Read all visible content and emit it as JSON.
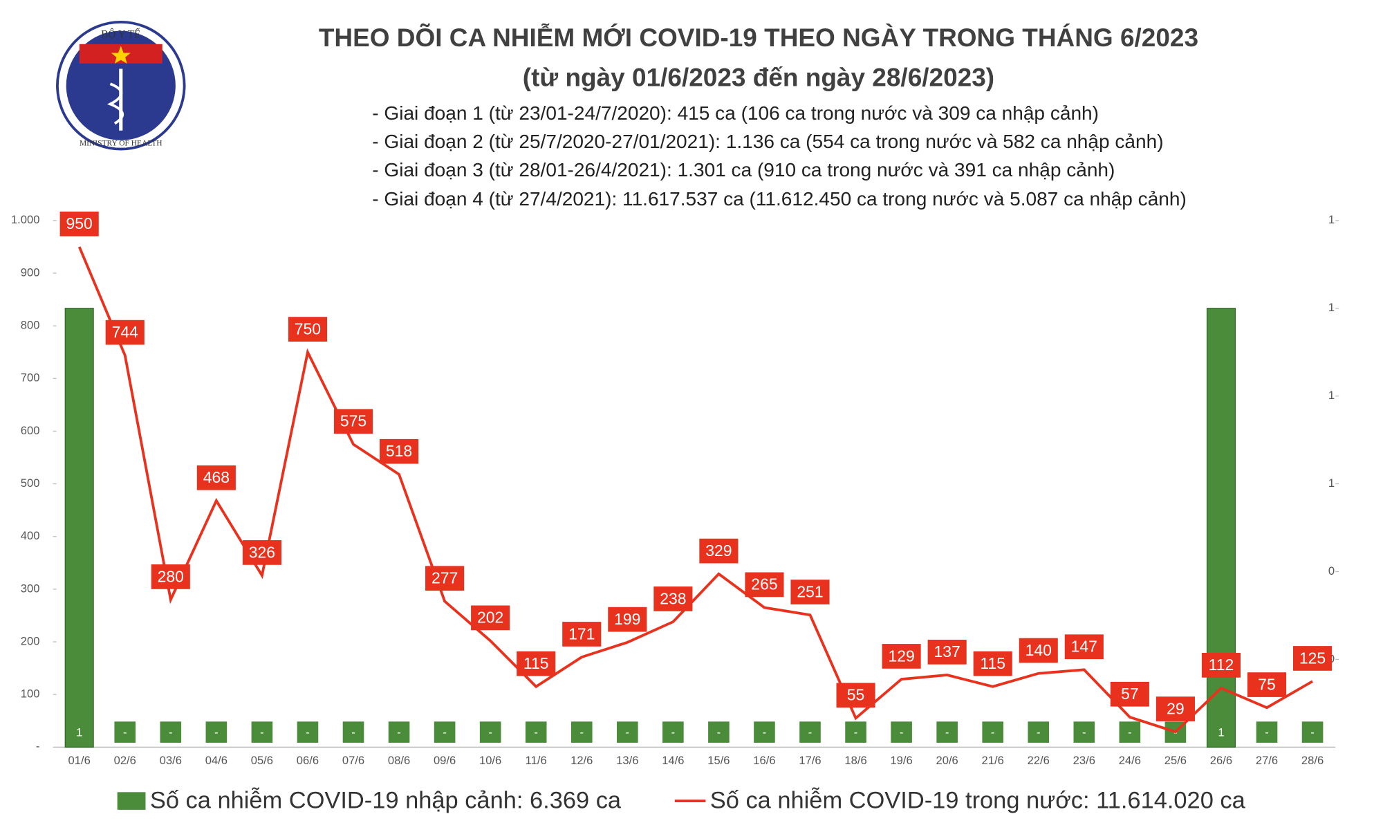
{
  "logo": {
    "top_text": "BỘ Y TẾ",
    "bottom_text": "MINISTRY OF HEALTH"
  },
  "chart_data": {
    "type": "bar-line",
    "title": "THEO DÕI CA NHIỄM MỚI COVID-19 THEO NGÀY TRONG THÁNG 6/2023",
    "subtitle": "(từ ngày 01/6/2023 đến ngày 28/6/2023)",
    "notes": [
      "- Giai đoạn 1 (từ 23/01-24/7/2020): 415 ca (106 ca trong nước và 309 ca nhập cảnh)",
      "- Giai đoạn 2 (từ 25/7/2020-27/01/2021): 1.136 ca (554 ca trong nước và 582 ca nhập cảnh)",
      "- Giai đoạn 3 (từ 28/01-26/4/2021): 1.301 ca (910 ca trong nước và 391 ca nhập cảnh)",
      "- Giai đoạn 4 (từ 27/4/2021): 11.617.537 ca (11.612.450 ca trong nước và 5.087 ca nhập cảnh)"
    ],
    "categories": [
      "01/6",
      "02/6",
      "03/6",
      "04/6",
      "05/6",
      "06/6",
      "07/6",
      "08/6",
      "09/6",
      "10/6",
      "11/6",
      "12/6",
      "13/6",
      "14/6",
      "15/6",
      "16/6",
      "17/6",
      "18/6",
      "19/6",
      "20/6",
      "21/6",
      "22/6",
      "23/6",
      "24/6",
      "25/6",
      "26/6",
      "27/6",
      "28/6"
    ],
    "series": [
      {
        "name": "Số ca nhiễm COVID-19 nhập cảnh: 6.369 ca",
        "color": "#4a8c3a",
        "type": "bar",
        "axis": "y2",
        "values": [
          1,
          0,
          0,
          0,
          0,
          0,
          0,
          0,
          0,
          0,
          0,
          0,
          0,
          0,
          0,
          0,
          0,
          0,
          0,
          0,
          0,
          0,
          0,
          0,
          0,
          1,
          0,
          0
        ],
        "value_labels": [
          "1",
          "-",
          "-",
          "-",
          "-",
          "-",
          "-",
          "-",
          "-",
          "-",
          "-",
          "-",
          "-",
          "-",
          "-",
          "-",
          "-",
          "-",
          "-",
          "-",
          "-",
          "-",
          "-",
          "-",
          "-",
          "1",
          "-",
          "-"
        ]
      },
      {
        "name": "Số ca nhiễm COVID-19 trong nước: 11.614.020 ca",
        "color": "#e8321e",
        "type": "line",
        "values": [
          950,
          744,
          280,
          468,
          326,
          750,
          575,
          518,
          277,
          202,
          115,
          171,
          199,
          238,
          329,
          265,
          251,
          55,
          129,
          137,
          115,
          140,
          147,
          57,
          29,
          112,
          75,
          125
        ]
      }
    ],
    "ylim": [
      0,
      1000
    ],
    "yticks": [
      {
        "value": 0,
        "label": "-"
      },
      100,
      200,
      300,
      400,
      500,
      600,
      700,
      800,
      900,
      {
        "value": 1000,
        "label": "1.000"
      }
    ],
    "y2lim": [
      0,
      1.2
    ],
    "y2ticks": [
      {
        "value": 0.2,
        "label": "0"
      },
      {
        "value": 0.4,
        "label": "0"
      },
      {
        "value": 0.6,
        "label": "1"
      },
      {
        "value": 0.8,
        "label": "1"
      },
      {
        "value": 1.0,
        "label": "1"
      },
      {
        "value": 1.2,
        "label": "1"
      }
    ],
    "grid": false,
    "legend": "bottom"
  }
}
